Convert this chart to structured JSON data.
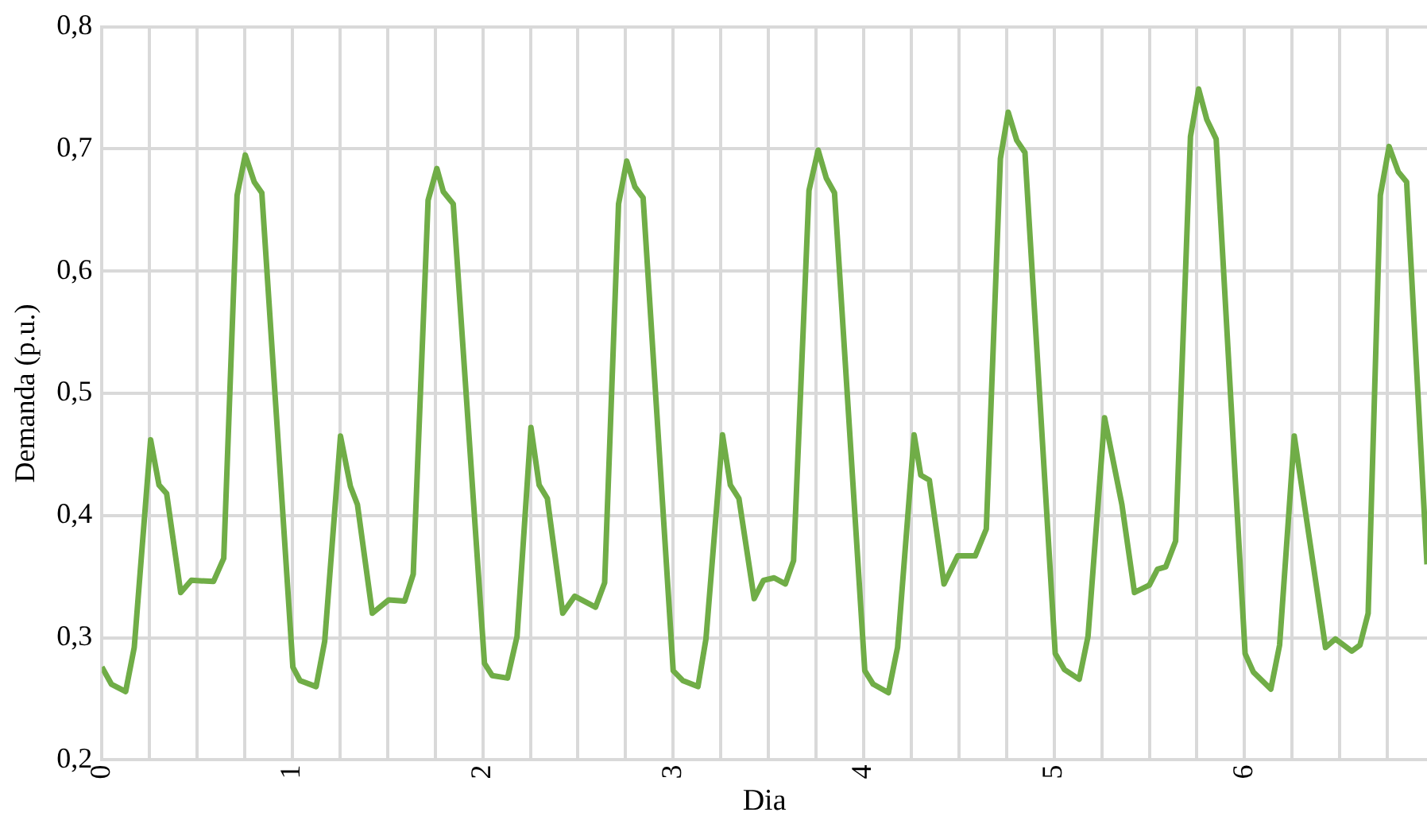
{
  "chart_data": {
    "type": "line",
    "xlabel": "Dia",
    "ylabel": "Demanda (p.u.)",
    "x": [
      0,
      0.05,
      0.125,
      0.17,
      0.256,
      0.3,
      0.34,
      0.414,
      0.47,
      0.586,
      0.64,
      0.71,
      0.753,
      0.8,
      0.84,
      1.003,
      1.04,
      1.125,
      1.17,
      1.253,
      1.305,
      1.342,
      1.42,
      1.506,
      1.59,
      1.635,
      1.713,
      1.759,
      1.793,
      1.845,
      2.009,
      2.05,
      2.13,
      2.18,
      2.253,
      2.296,
      2.339,
      2.42,
      2.483,
      2.592,
      2.64,
      2.713,
      2.756,
      2.799,
      2.842,
      3.0,
      3.05,
      3.13,
      3.172,
      3.259,
      3.3,
      3.345,
      3.425,
      3.474,
      3.53,
      3.589,
      3.632,
      3.713,
      3.761,
      3.804,
      3.847,
      4.006,
      4.05,
      4.13,
      4.178,
      4.265,
      4.3,
      4.345,
      4.422,
      4.494,
      4.586,
      4.644,
      4.718,
      4.759,
      4.804,
      4.847,
      5.006,
      5.054,
      5.132,
      5.178,
      5.265,
      5.356,
      5.422,
      5.5,
      5.543,
      5.586,
      5.638,
      5.716,
      5.759,
      5.802,
      5.851,
      6.003,
      6.046,
      6.138,
      6.184,
      6.261,
      6.425,
      6.477,
      6.563,
      6.606,
      6.649,
      6.713,
      6.759,
      6.808,
      6.851,
      6.958
    ],
    "series": [
      {
        "color": "#70ad47",
        "values": [
          0.276,
          0.262,
          0.256,
          0.292,
          0.462,
          0.425,
          0.418,
          0.337,
          0.347,
          0.346,
          0.365,
          0.662,
          0.695,
          0.673,
          0.664,
          0.276,
          0.265,
          0.26,
          0.297,
          0.465,
          0.424,
          0.409,
          0.32,
          0.331,
          0.33,
          0.352,
          0.658,
          0.684,
          0.665,
          0.655,
          0.279,
          0.269,
          0.267,
          0.301,
          0.472,
          0.425,
          0.414,
          0.32,
          0.334,
          0.325,
          0.345,
          0.655,
          0.69,
          0.669,
          0.66,
          0.273,
          0.265,
          0.26,
          0.299,
          0.466,
          0.425,
          0.414,
          0.332,
          0.347,
          0.349,
          0.344,
          0.363,
          0.666,
          0.699,
          0.676,
          0.664,
          0.273,
          0.262,
          0.255,
          0.292,
          0.466,
          0.433,
          0.429,
          0.344,
          0.367,
          0.367,
          0.389,
          0.692,
          0.73,
          0.707,
          0.697,
          0.287,
          0.274,
          0.266,
          0.301,
          0.48,
          0.409,
          0.337,
          0.343,
          0.356,
          0.358,
          0.379,
          0.71,
          0.749,
          0.724,
          0.708,
          0.287,
          0.272,
          0.258,
          0.294,
          0.465,
          0.292,
          0.299,
          0.289,
          0.294,
          0.32,
          0.662,
          0.702,
          0.681,
          0.673,
          0.36
        ]
      }
    ],
    "xlim": [
      0,
      6.958
    ],
    "xticks": [
      0,
      {
        "value": 0.25,
        "label": null
      },
      {
        "value": 0.5,
        "label": null
      },
      {
        "value": 0.75,
        "label": null
      },
      1,
      {
        "value": 1.25,
        "label": null
      },
      {
        "value": 1.5,
        "label": null
      },
      {
        "value": 1.75,
        "label": null
      },
      2,
      {
        "value": 2.25,
        "label": null
      },
      {
        "value": 2.5,
        "label": null
      },
      {
        "value": 2.75,
        "label": null
      },
      3,
      {
        "value": 3.25,
        "label": null
      },
      {
        "value": 3.5,
        "label": null
      },
      {
        "value": 3.75,
        "label": null
      },
      4,
      {
        "value": 4.25,
        "label": null
      },
      {
        "value": 4.5,
        "label": null
      },
      {
        "value": 4.75,
        "label": null
      },
      5,
      {
        "value": 5.25,
        "label": null
      },
      {
        "value": 5.5,
        "label": null
      },
      {
        "value": 5.75,
        "label": null
      },
      6,
      {
        "value": 6.25,
        "label": null
      },
      {
        "value": 6.5,
        "label": null
      },
      {
        "value": 6.75,
        "label": null
      }
    ],
    "ylim": [
      0.2,
      0.8
    ],
    "yticks": [
      {
        "value": 0.2,
        "label": "0,2"
      },
      {
        "value": 0.3,
        "label": "0,3"
      },
      {
        "value": 0.4,
        "label": "0,4"
      },
      {
        "value": 0.5,
        "label": "0,5"
      },
      {
        "value": 0.6,
        "label": "0,6"
      },
      {
        "value": 0.7,
        "label": "0,7"
      },
      {
        "value": 0.8,
        "label": "0,8"
      }
    ],
    "grid": true,
    "marker": "none",
    "line_style": "solid"
  }
}
